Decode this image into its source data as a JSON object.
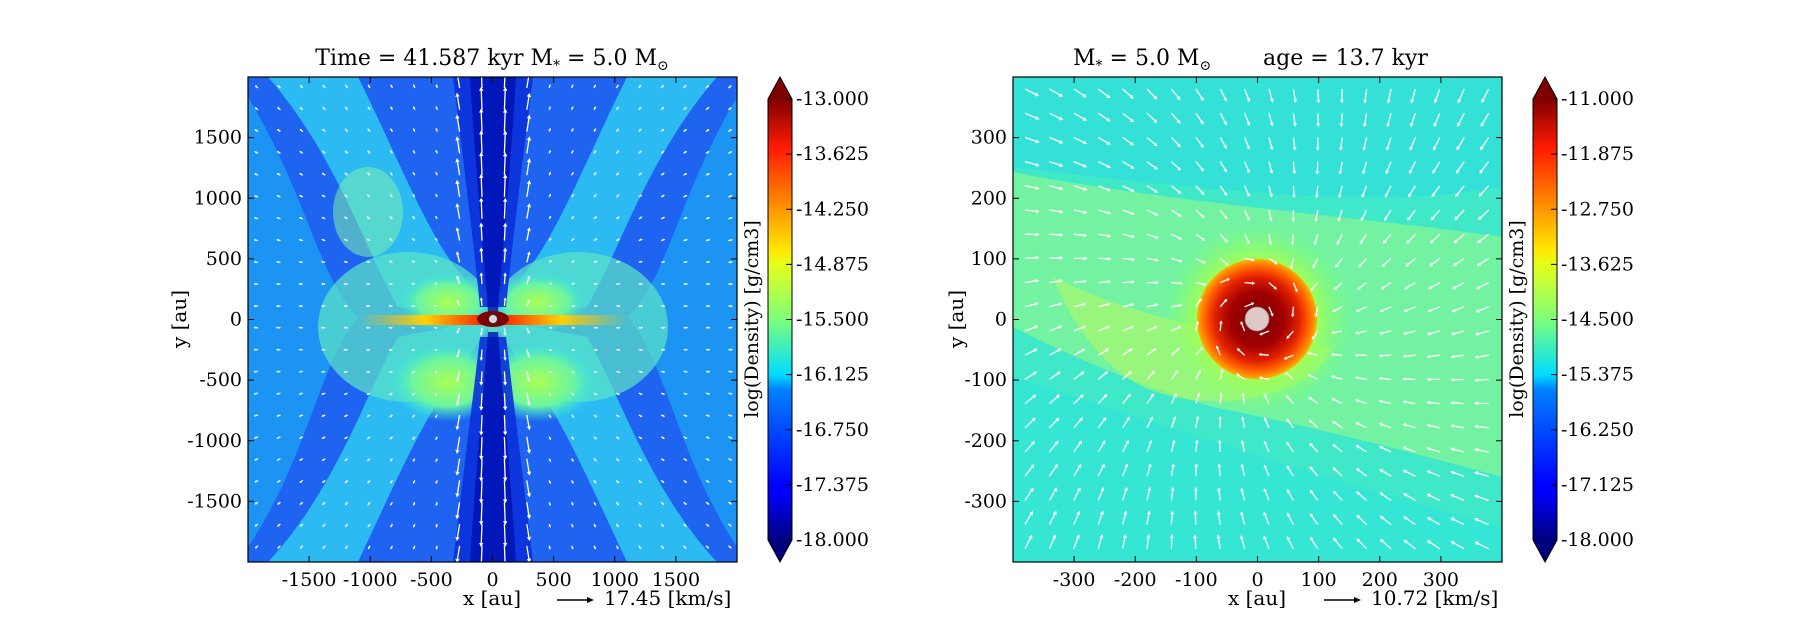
{
  "chart_data": [
    {
      "type": "heatmap",
      "title": "Time = 41.587 kyr    M$_*$ = 5.0 M$_\\odot$",
      "title_text": "Time = 41.587 kyr    M",
      "title_mass": " = 5.0 M",
      "xlabel": "x [au]",
      "ylabel": "y [au]",
      "xlim": [
        -2000,
        2000
      ],
      "ylim": [
        -2000,
        2000
      ],
      "xticks": [
        -1500,
        -1000,
        -500,
        0,
        500,
        1000,
        1500
      ],
      "yticks": [
        -1500,
        -1000,
        -500,
        0,
        500,
        1000,
        1500
      ],
      "colorbar": {
        "label": "log(Density) [g/cm3]",
        "min": -18.0,
        "max": -13.0,
        "ticks": [
          "-13.000",
          "-13.625",
          "-14.250",
          "-14.875",
          "-15.500",
          "-16.125",
          "-16.750",
          "-17.375",
          "-18.000"
        ],
        "colormap": "jet"
      },
      "vector_scale": {
        "label": "17.45 [km/s]",
        "value": 17.45
      },
      "features": {
        "central_star": {
          "x": 0,
          "y": 0
        },
        "disk_extent_au": 900,
        "outflow_cavity": "bipolar along y-axis"
      }
    },
    {
      "type": "heatmap",
      "title_text": "M",
      "title_mass": " = 5.0 M",
      "title_age": "age = 13.7 kyr",
      "xlabel": "x [au]",
      "ylabel": "y [au]",
      "xlim": [
        -400,
        400
      ],
      "ylim": [
        -400,
        400
      ],
      "xticks": [
        -300,
        -200,
        -100,
        0,
        100,
        200,
        300
      ],
      "yticks": [
        -300,
        -200,
        -100,
        0,
        100,
        200,
        300
      ],
      "colorbar": {
        "label": "log(Density) [g/cm3]",
        "min": -18.0,
        "max": -11.0,
        "ticks": [
          "-11.000",
          "-11.875",
          "-12.750",
          "-13.625",
          "-14.500",
          "-15.375",
          "-16.250",
          "-17.125",
          "-18.000"
        ],
        "colormap": "jet"
      },
      "vector_scale": {
        "label": "10.72 [km/s]",
        "value": 10.72
      },
      "features": {
        "central_star": {
          "x": 0,
          "y": 0
        },
        "dense_core_radius_au": 90,
        "inflow": "rotating infall toward center"
      }
    }
  ],
  "symbols": {
    "star_subscript": "*",
    "sun": "⊙"
  }
}
